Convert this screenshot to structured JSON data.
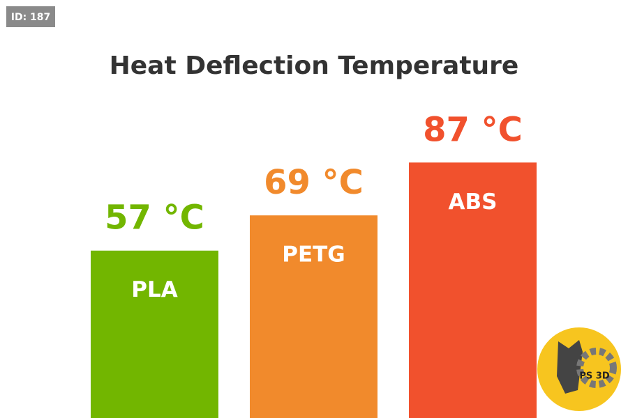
{
  "badge": "ID: 187",
  "logo": "PS 3D",
  "chart_data": {
    "type": "bar",
    "title": "Heat Deflection Temperature",
    "categories": [
      "PLA",
      "PETG",
      "ABS"
    ],
    "values": [
      57,
      69,
      87
    ],
    "value_labels": [
      "57 °C",
      "69 °C",
      "87 °C"
    ],
    "colors": [
      "#72b600",
      "#f18a2c",
      "#f1512d"
    ]
  }
}
